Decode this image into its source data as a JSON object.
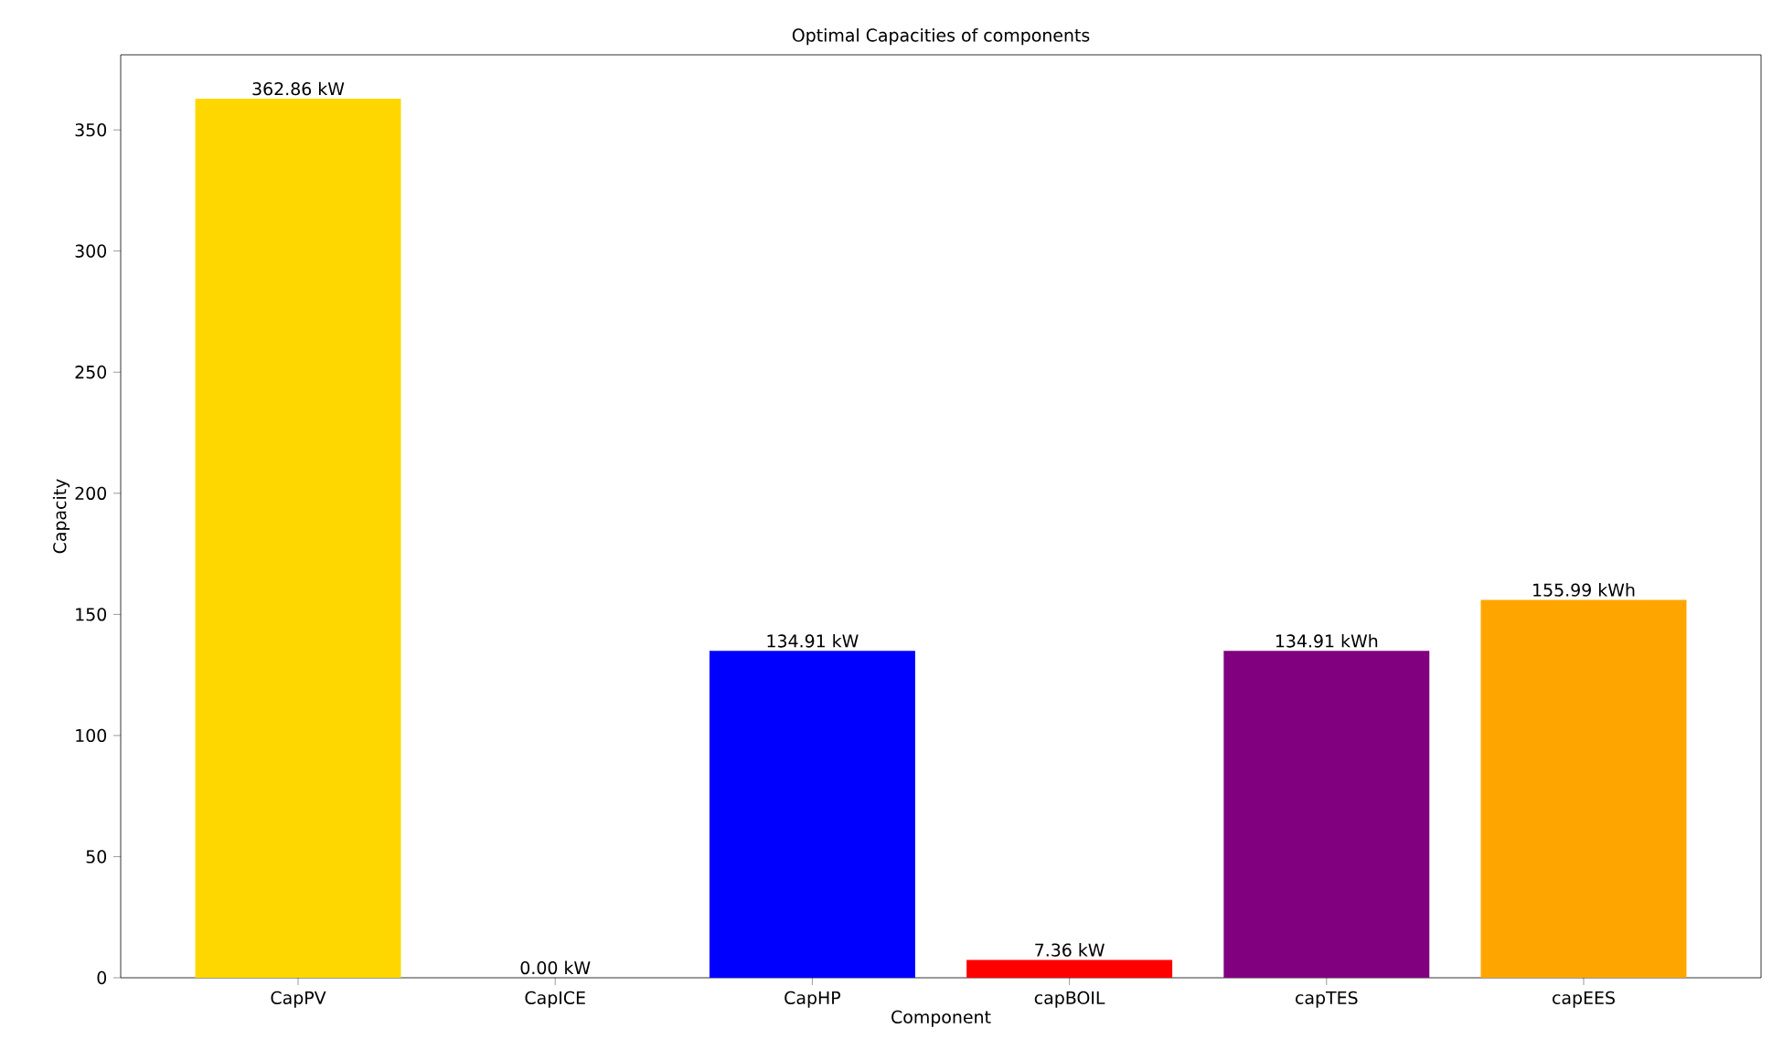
{
  "chart_data": {
    "type": "bar",
    "title": "Optimal Capacities of components",
    "xlabel": "Component",
    "ylabel": "Capacity",
    "categories": [
      "CapPV",
      "CapICE",
      "CapHP",
      "capBOIL",
      "capTES",
      "capEES"
    ],
    "values": [
      362.86,
      0.0,
      134.91,
      7.36,
      134.91,
      155.99
    ],
    "colors": [
      "#ffd700",
      "#008000",
      "#0000ff",
      "#ff0000",
      "#800080",
      "#ffa500"
    ],
    "value_labels": [
      "362.86 kW",
      "0.00 kW",
      "134.91 kW",
      "7.36 kW",
      "134.91 kWh",
      "155.99 kWh"
    ],
    "ylim": [
      0,
      381
    ],
    "yticks": [
      0,
      50,
      100,
      150,
      200,
      250,
      300,
      350
    ]
  }
}
